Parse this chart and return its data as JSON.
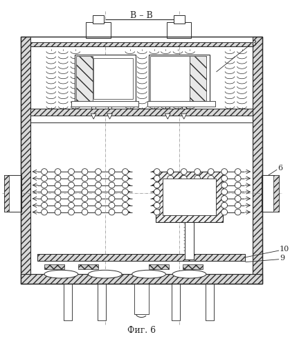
{
  "title": "В–В",
  "fig_label": "Фиг. 6",
  "bg_color": "#ffffff",
  "line_color": "#2a2a2a",
  "figsize": [
    4.19,
    5.0
  ],
  "dpi": 100
}
